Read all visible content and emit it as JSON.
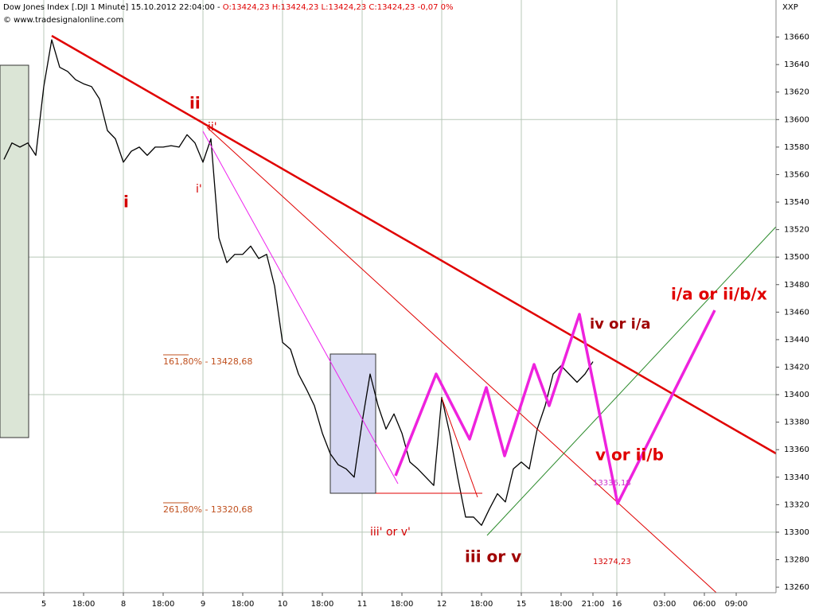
{
  "chart_data": {
    "type": "line",
    "title": "Dow Jones Index [.DJI  1 Minute] 15.10.2012 22:04:00 - ",
    "quote": "O:13424,23 H:13424,23 L:13424,23 C:13424,23 -0,07 0%",
    "subtitle": "© www.tradesignalonline.com",
    "axis_label": "XXP",
    "categories": [
      null,
      null,
      null,
      null,
      null,
      "5",
      null,
      null,
      null,
      null,
      "18:00",
      null,
      null,
      null,
      null,
      "8",
      null,
      null,
      null,
      null,
      "18:00",
      null,
      null,
      null,
      null,
      "9",
      null,
      null,
      null,
      null,
      "18:00",
      null,
      null,
      null,
      null,
      "10",
      null,
      null,
      null,
      null,
      "18:00",
      null,
      null,
      null,
      null,
      "11",
      null,
      null,
      null,
      null,
      "18:00",
      null,
      null,
      null,
      null,
      "12",
      null,
      null,
      null,
      null,
      "18:00",
      null,
      null,
      null,
      null,
      "15",
      null,
      null,
      null,
      null,
      "18:00",
      null,
      null,
      null,
      "21:00",
      null,
      null,
      "16",
      null,
      null,
      null,
      null,
      null,
      "03:00",
      null,
      null,
      null,
      null,
      "06:00",
      null,
      null,
      null,
      "09:00",
      null,
      null,
      null,
      null,
      null
    ],
    "series": [
      {
        "color": "#000000",
        "values": [
          13571,
          13583,
          13580,
          13583,
          13574,
          13624,
          13658,
          13638,
          13635,
          13629,
          13626,
          13624,
          13615,
          13592,
          13586,
          13569,
          13577,
          13580,
          13574,
          13580,
          13580,
          13581,
          13580,
          13589,
          13583,
          13569,
          13586,
          13514,
          13496,
          13502,
          13502,
          13508,
          13499,
          13502,
          13479,
          13438,
          13433,
          13415,
          13404,
          13392,
          13372,
          13357,
          13349,
          13346,
          13340,
          13380,
          13415,
          13392,
          13375,
          13386,
          13372,
          13351,
          13346,
          13340,
          13334,
          13398,
          13372,
          13340,
          13311,
          13311,
          13305,
          13317,
          13328,
          13322,
          13346,
          13351,
          13346,
          13375,
          13392,
          13415,
          13421,
          13415,
          13409,
          13415,
          13424,
          null,
          null,
          null,
          null,
          null,
          null,
          null,
          null,
          null,
          null,
          null,
          null,
          null,
          null,
          null,
          null,
          null,
          null,
          null,
          null,
          null,
          null,
          null
        ]
      }
    ],
    "ylim": [
      13256,
      13680
    ],
    "yticks": [
      13260,
      13280,
      13300,
      13320,
      13340,
      13360,
      13380,
      13400,
      13420,
      13440,
      13460,
      13480,
      13500,
      13520,
      13540,
      13560,
      13580,
      13600,
      13620,
      13640,
      13660
    ],
    "grid": true,
    "annotations": [
      {
        "text": "ii",
        "color": "#d40000"
      },
      {
        "text": "ii'",
        "color": "#d40000"
      },
      {
        "text": "i",
        "color": "#d40000"
      },
      {
        "text": "i'",
        "color": "#d40000"
      },
      {
        "text": "161,80% - 13428,68",
        "color": "#c0501e"
      },
      {
        "text": "261,80% - 13320,68",
        "color": "#c0501e"
      },
      {
        "text": "iii' or v'",
        "color": "#d40000"
      },
      {
        "text": "iii or v",
        "color": "#a00000"
      },
      {
        "text": "iv or i/a",
        "color": "#a00000"
      },
      {
        "text": "v or ii/b",
        "color": "#e00000"
      },
      {
        "text": "i/a or ii/b/x",
        "color": "#e00000"
      },
      {
        "text": "13336,18",
        "color": "#cc33cc"
      },
      {
        "text": "13274,23",
        "color": "#d40000"
      }
    ]
  }
}
